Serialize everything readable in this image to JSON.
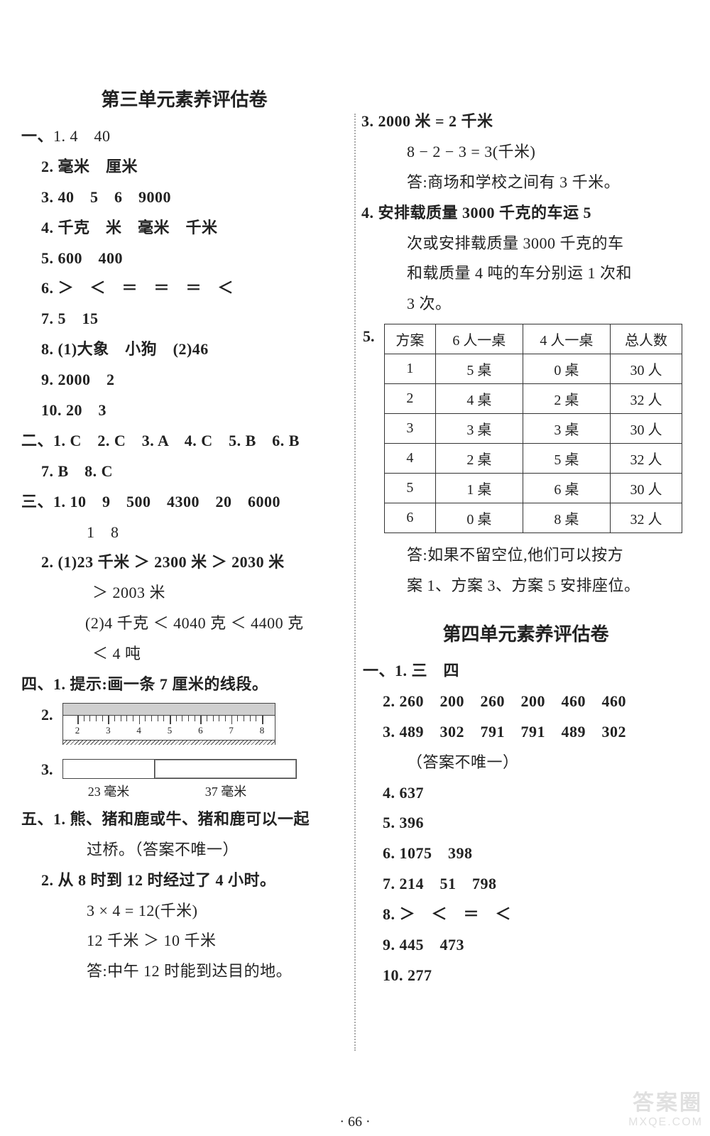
{
  "unit3": {
    "title": "第三单元素养评估卷",
    "sec1": {
      "p1": "1. 4　40",
      "p2": "2. 毫米　厘米",
      "p3": "3. 40　5　6　9000",
      "p4": "4. 千克　米　毫米　千米",
      "p5": "5. 600　400",
      "p6": "6. ＞　＜　＝　＝　＝　＜",
      "p7": "7. 5　15",
      "p8": "8. (1)大象　小狗　(2)46",
      "p9": "9. 2000　2",
      "p10": "10. 20　3"
    },
    "sec2": {
      "row1": "二、1. C　2. C　3. A　4. C　5. B　6. B",
      "row2": "7. B　8. C"
    },
    "sec3": {
      "row1": "三、1. 10　9　500　4300　20　6000",
      "row1b": "1　8",
      "row2a": "2. (1)23 千米 ＞ 2300 米 ＞ 2030 米",
      "row2b": "＞ 2003 米",
      "row2c": "(2)4 千克 ＜ 4040 克 ＜ 4400 克",
      "row2d": "＜ 4 吨"
    },
    "sec4": {
      "p1": "四、1. 提示:画一条 7 厘米的线段。",
      "p2label": "2.",
      "ruler_numbers": [
        "2",
        "3",
        "4",
        "5",
        "6",
        "7",
        "8"
      ],
      "p3label": "3.",
      "seg_left": "23 毫米",
      "seg_right": "37 毫米"
    },
    "sec5": {
      "p1": "五、1. 熊、猪和鹿或牛、猪和鹿可以一起",
      "p1b": "过桥。（答案不唯一）",
      "p2a": "2. 从 8 时到 12 时经过了 4 小时。",
      "p2b": "3 × 4 = 12(千米)",
      "p2c": "12 千米 ＞ 10 千米",
      "p2d": "答:中午 12 时能到达目的地。"
    }
  },
  "rightcol": {
    "p3a": "3. 2000 米 = 2 千米",
    "p3b": "8 − 2 − 3 = 3(千米)",
    "p3c": "答:商场和学校之间有 3 千米。",
    "p4a": "4. 安排载质量 3000 千克的车运 5",
    "p4b": "次或安排载质量 3000 千克的车",
    "p4c": "和载质量 4 吨的车分别运 1 次和",
    "p4d": "3 次。",
    "p5label": "5.",
    "table": {
      "headers": [
        "方案",
        "6 人一桌",
        "4 人一桌",
        "总人数"
      ],
      "rows": [
        [
          "1",
          "5 桌",
          "0 桌",
          "30 人"
        ],
        [
          "2",
          "4 桌",
          "2 桌",
          "32 人"
        ],
        [
          "3",
          "3 桌",
          "3 桌",
          "30 人"
        ],
        [
          "4",
          "2 桌",
          "5 桌",
          "32 人"
        ],
        [
          "5",
          "1 桌",
          "6 桌",
          "30 人"
        ],
        [
          "6",
          "0 桌",
          "8 桌",
          "32 人"
        ]
      ]
    },
    "p5ans1": "答:如果不留空位,他们可以按方",
    "p5ans2": "案 1、方案 3、方案 5 安排座位。"
  },
  "unit4": {
    "title": "第四单元素养评估卷",
    "p1": "一、1. 三　四",
    "p2": "2. 260　200　260　200　460　460",
    "p3": "3. 489　302　791　791　489　302",
    "p3b": "（答案不唯一）",
    "p4": "4. 637",
    "p5": "5. 396",
    "p6": "6. 1075　398",
    "p7": "7. 214　51　798",
    "p8": "8. ＞　＜　＝　＜",
    "p9": "9. 445　473",
    "p10": "10. 277"
  },
  "page_num": "· 66 ·",
  "watermark": {
    "l1": "答案圈",
    "l2": "MXQE.COM"
  }
}
